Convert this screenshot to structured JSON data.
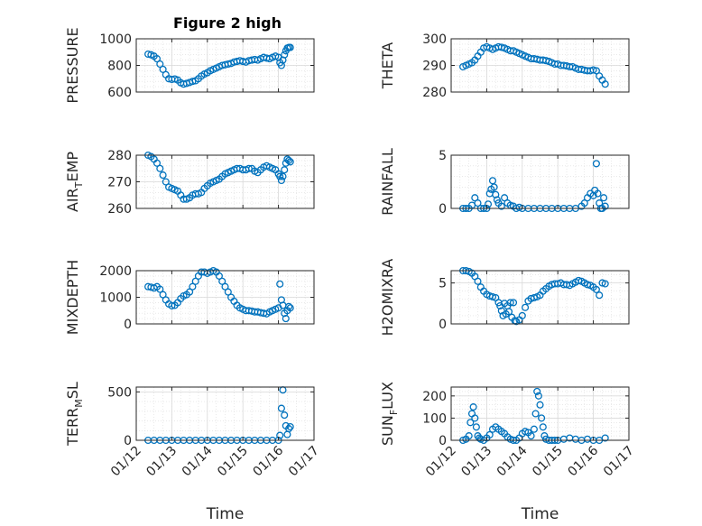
{
  "figure": {
    "title": "Figure 2 high",
    "marker_color": "#0072BD",
    "axis_color": "#262626",
    "grid_color": "#DCDCDC"
  },
  "chart_data": [
    {
      "id": "pressure",
      "type": "scatter",
      "title": "Figure 2 high",
      "ylabel": {
        "main": "PRESSURE",
        "sub": "",
        "tail": ""
      },
      "xlabel": "",
      "xlim": [
        "01/12",
        "01/17"
      ],
      "xticks": [
        "01/12",
        "01/13",
        "01/14",
        "01/15",
        "01/16",
        "01/17"
      ],
      "show_xticklabels": false,
      "ylim": [
        600,
        1000
      ],
      "yticks": [
        600,
        800,
        1000
      ],
      "grid": true,
      "x": [
        "01/12 08:00",
        "01/12 10:00",
        "01/12 12:00",
        "01/12 14:00",
        "01/12 16:00",
        "01/12 18:00",
        "01/12 20:00",
        "01/12 22:00",
        "01/13 00:00",
        "01/13 02:00",
        "01/13 04:00",
        "01/13 06:00",
        "01/13 08:00",
        "01/13 10:00",
        "01/13 12:00",
        "01/13 14:00",
        "01/13 16:00",
        "01/13 18:00",
        "01/13 20:00",
        "01/13 22:00",
        "01/14 00:00",
        "01/14 02:00",
        "01/14 04:00",
        "01/14 06:00",
        "01/14 08:00",
        "01/14 10:00",
        "01/14 12:00",
        "01/14 14:00",
        "01/14 16:00",
        "01/14 18:00",
        "01/14 20:00",
        "01/14 22:00",
        "01/15 00:00",
        "01/15 02:00",
        "01/15 04:00",
        "01/15 06:00",
        "01/15 08:00",
        "01/15 10:00",
        "01/15 12:00",
        "01/15 14:00",
        "01/15 16:00",
        "01/15 18:00",
        "01/15 20:00",
        "01/15 22:00",
        "01/16 00:00",
        "01/16 01:00",
        "01/16 02:00",
        "01/16 03:00",
        "01/16 04:00",
        "01/16 05:00",
        "01/16 06:00",
        "01/16 07:00",
        "01/16 08:00"
      ],
      "y": [
        885,
        880,
        870,
        850,
        810,
        770,
        730,
        700,
        695,
        698,
        690,
        670,
        660,
        665,
        672,
        680,
        685,
        700,
        720,
        735,
        745,
        760,
        770,
        780,
        790,
        800,
        805,
        810,
        815,
        825,
        830,
        835,
        830,
        825,
        835,
        840,
        845,
        840,
        850,
        860,
        855,
        850,
        860,
        870,
        860,
        820,
        800,
        840,
        880,
        910,
        930,
        935,
        935
      ]
    },
    {
      "id": "theta",
      "type": "scatter",
      "ylabel": {
        "main": "THETA",
        "sub": "",
        "tail": ""
      },
      "xlabel": "",
      "xlim": [
        "01/12",
        "01/17"
      ],
      "xticks": [
        "01/12",
        "01/13",
        "01/14",
        "01/15",
        "01/16",
        "01/17"
      ],
      "show_xticklabels": false,
      "ylim": [
        280,
        300
      ],
      "yticks": [
        280,
        290,
        300
      ],
      "grid": true,
      "x": [
        "01/12 08:00",
        "01/12 10:00",
        "01/12 12:00",
        "01/12 14:00",
        "01/12 16:00",
        "01/12 18:00",
        "01/12 20:00",
        "01/12 22:00",
        "01/13 00:00",
        "01/13 02:00",
        "01/13 04:00",
        "01/13 06:00",
        "01/13 08:00",
        "01/13 10:00",
        "01/13 12:00",
        "01/13 14:00",
        "01/13 16:00",
        "01/13 18:00",
        "01/13 20:00",
        "01/13 22:00",
        "01/14 00:00",
        "01/14 02:00",
        "01/14 04:00",
        "01/14 06:00",
        "01/14 08:00",
        "01/14 10:00",
        "01/14 12:00",
        "01/14 14:00",
        "01/14 16:00",
        "01/14 18:00",
        "01/14 20:00",
        "01/14 22:00",
        "01/15 00:00",
        "01/15 02:00",
        "01/15 04:00",
        "01/15 06:00",
        "01/15 08:00",
        "01/15 10:00",
        "01/15 12:00",
        "01/15 14:00",
        "01/15 16:00",
        "01/15 18:00",
        "01/15 20:00",
        "01/15 22:00",
        "01/16 00:00",
        "01/16 02:00",
        "01/16 04:00",
        "01/16 06:00",
        "01/16 08:00"
      ],
      "y": [
        289.5,
        290,
        290.5,
        291,
        292,
        293.5,
        295,
        296.5,
        297,
        296.5,
        296,
        296.5,
        297,
        296.8,
        296.5,
        296,
        295.5,
        295.5,
        295,
        294.5,
        294,
        293.5,
        293,
        292.5,
        292.5,
        292.3,
        292,
        292,
        291.8,
        291.5,
        291,
        290.5,
        290.5,
        290,
        290,
        289.8,
        289.5,
        289.5,
        289,
        288.5,
        288.5,
        288.2,
        288,
        288,
        288.3,
        288,
        286,
        284.5,
        283
      ]
    },
    {
      "id": "air-temp",
      "type": "scatter",
      "ylabel": {
        "main": "AIR",
        "sub": "T",
        "tail": "EMP"
      },
      "xlabel": "",
      "xlim": [
        "01/12",
        "01/17"
      ],
      "xticks": [
        "01/12",
        "01/13",
        "01/14",
        "01/15",
        "01/16",
        "01/17"
      ],
      "show_xticklabels": false,
      "ylim": [
        260,
        280
      ],
      "yticks": [
        260,
        270,
        280
      ],
      "grid": true,
      "x": [
        "01/12 08:00",
        "01/12 10:00",
        "01/12 12:00",
        "01/12 14:00",
        "01/12 16:00",
        "01/12 18:00",
        "01/12 20:00",
        "01/12 22:00",
        "01/13 00:00",
        "01/13 02:00",
        "01/13 04:00",
        "01/13 06:00",
        "01/13 08:00",
        "01/13 10:00",
        "01/13 12:00",
        "01/13 14:00",
        "01/13 16:00",
        "01/13 18:00",
        "01/13 20:00",
        "01/13 22:00",
        "01/14 00:00",
        "01/14 02:00",
        "01/14 04:00",
        "01/14 06:00",
        "01/14 08:00",
        "01/14 10:00",
        "01/14 12:00",
        "01/14 14:00",
        "01/14 16:00",
        "01/14 18:00",
        "01/14 20:00",
        "01/14 22:00",
        "01/15 00:00",
        "01/15 02:00",
        "01/15 04:00",
        "01/15 06:00",
        "01/15 08:00",
        "01/15 10:00",
        "01/15 12:00",
        "01/15 14:00",
        "01/15 16:00",
        "01/15 18:00",
        "01/15 20:00",
        "01/15 22:00",
        "01/16 00:00",
        "01/16 01:00",
        "01/16 02:00",
        "01/16 03:00",
        "01/16 04:00",
        "01/16 05:00",
        "01/16 06:00",
        "01/16 07:00",
        "01/16 08:00"
      ],
      "y": [
        280,
        279.5,
        278.5,
        277,
        275,
        272.5,
        270,
        268,
        267.5,
        267,
        266.5,
        265,
        263.5,
        263.5,
        264,
        265,
        265.5,
        265.5,
        266,
        267.5,
        268.5,
        269.5,
        270,
        270.5,
        271,
        272,
        273,
        273.5,
        274,
        274.5,
        275,
        275,
        274.5,
        274.5,
        275,
        275,
        274,
        273.5,
        274.5,
        275.5,
        276,
        275.5,
        275,
        274.5,
        273,
        272,
        270.5,
        272,
        274.5,
        277,
        278.5,
        278,
        277.5
      ]
    },
    {
      "id": "rainfall",
      "type": "scatter",
      "ylabel": {
        "main": "RAINFALL",
        "sub": "",
        "tail": ""
      },
      "xlabel": "",
      "xlim": [
        "01/12",
        "01/17"
      ],
      "xticks": [
        "01/12",
        "01/13",
        "01/14",
        "01/15",
        "01/16",
        "01/17"
      ],
      "show_xticklabels": false,
      "ylim": [
        0,
        5
      ],
      "yticks": [
        0,
        5
      ],
      "grid": true,
      "x": [
        "01/12 08:00",
        "01/12 10:00",
        "01/12 12:00",
        "01/12 14:00",
        "01/12 16:00",
        "01/12 18:00",
        "01/12 20:00",
        "01/12 22:00",
        "01/13 00:00",
        "01/13 01:00",
        "01/13 02:00",
        "01/13 03:00",
        "01/13 04:00",
        "01/13 05:00",
        "01/13 06:00",
        "01/13 07:00",
        "01/13 08:00",
        "01/13 10:00",
        "01/13 12:00",
        "01/13 14:00",
        "01/13 16:00",
        "01/13 18:00",
        "01/13 20:00",
        "01/13 22:00",
        "01/14 00:00",
        "01/14 04:00",
        "01/14 08:00",
        "01/14 12:00",
        "01/14 16:00",
        "01/14 20:00",
        "01/15 00:00",
        "01/15 04:00",
        "01/15 08:00",
        "01/15 12:00",
        "01/15 16:00",
        "01/15 18:00",
        "01/15 20:00",
        "01/15 22:00",
        "01/16 00:00",
        "01/16 01:00",
        "01/16 02:00",
        "01/16 03:00",
        "01/16 04:00",
        "01/16 05:00",
        "01/16 06:00",
        "01/16 07:00",
        "01/16 08:00"
      ],
      "y": [
        0,
        0,
        0,
        0.3,
        1,
        0.5,
        0,
        0,
        0,
        0.4,
        1.4,
        1.8,
        2.6,
        2,
        1.3,
        0.8,
        0.5,
        0.2,
        1,
        0.5,
        0.3,
        0.2,
        0,
        0.1,
        0,
        0,
        0,
        0,
        0,
        0,
        0,
        0,
        0,
        0,
        0.2,
        0.5,
        1,
        1.4,
        1.2,
        1.7,
        4.2,
        1.4,
        0.5,
        0,
        0,
        1,
        0.2
      ]
    },
    {
      "id": "mixdepth",
      "type": "scatter",
      "ylabel": {
        "main": "MIXDEPTH",
        "sub": "",
        "tail": ""
      },
      "xlabel": "",
      "xlim": [
        "01/12",
        "01/17"
      ],
      "xticks": [
        "01/12",
        "01/13",
        "01/14",
        "01/15",
        "01/16",
        "01/17"
      ],
      "show_xticklabels": false,
      "ylim": [
        0,
        2000
      ],
      "yticks": [
        0,
        1000,
        2000
      ],
      "grid": true,
      "x": [
        "01/12 08:00",
        "01/12 10:00",
        "01/12 12:00",
        "01/12 14:00",
        "01/12 16:00",
        "01/12 18:00",
        "01/12 20:00",
        "01/12 22:00",
        "01/13 00:00",
        "01/13 02:00",
        "01/13 04:00",
        "01/13 06:00",
        "01/13 08:00",
        "01/13 10:00",
        "01/13 12:00",
        "01/13 14:00",
        "01/13 16:00",
        "01/13 18:00",
        "01/13 20:00",
        "01/13 22:00",
        "01/14 00:00",
        "01/14 02:00",
        "01/14 04:00",
        "01/14 06:00",
        "01/14 08:00",
        "01/14 10:00",
        "01/14 12:00",
        "01/14 14:00",
        "01/14 16:00",
        "01/14 18:00",
        "01/14 20:00",
        "01/14 22:00",
        "01/15 00:00",
        "01/15 02:00",
        "01/15 04:00",
        "01/15 06:00",
        "01/15 08:00",
        "01/15 10:00",
        "01/15 12:00",
        "01/15 14:00",
        "01/15 16:00",
        "01/15 18:00",
        "01/15 20:00",
        "01/15 22:00",
        "01/16 00:00",
        "01/16 01:00",
        "01/16 02:00",
        "01/16 03:00",
        "01/16 04:00",
        "01/16 05:00",
        "01/16 06:00",
        "01/16 07:00",
        "01/16 08:00"
      ],
      "y": [
        1400,
        1380,
        1350,
        1400,
        1300,
        1100,
        900,
        750,
        680,
        700,
        800,
        950,
        1050,
        1100,
        1200,
        1400,
        1600,
        1800,
        1950,
        1950,
        1900,
        1950,
        2000,
        1950,
        1800,
        1600,
        1400,
        1200,
        1000,
        850,
        700,
        600,
        550,
        500,
        500,
        480,
        450,
        450,
        420,
        400,
        380,
        450,
        500,
        550,
        600,
        1500,
        900,
        700,
        400,
        200,
        500,
        650,
        600
      ]
    },
    {
      "id": "h2omixra",
      "type": "scatter",
      "ylabel": {
        "main": "H2OMIXRA",
        "sub": "",
        "tail": ""
      },
      "xlabel": "",
      "xlim": [
        "01/12",
        "01/17"
      ],
      "xticks": [
        "01/12",
        "01/13",
        "01/14",
        "01/15",
        "01/16",
        "01/17"
      ],
      "show_xticklabels": false,
      "ylim": [
        0,
        6.5
      ],
      "yticks": [
        0,
        5
      ],
      "grid": true,
      "x": [
        "01/12 08:00",
        "01/12 10:00",
        "01/12 12:00",
        "01/12 14:00",
        "01/12 16:00",
        "01/12 18:00",
        "01/12 20:00",
        "01/12 22:00",
        "01/13 00:00",
        "01/13 02:00",
        "01/13 04:00",
        "01/13 06:00",
        "01/13 08:00",
        "01/13 09:00",
        "01/13 10:00",
        "01/13 11:00",
        "01/13 12:00",
        "01/13 13:00",
        "01/13 14:00",
        "01/13 15:00",
        "01/13 16:00",
        "01/13 17:00",
        "01/13 18:00",
        "01/13 19:00",
        "01/13 20:00",
        "01/13 22:00",
        "01/14 00:00",
        "01/14 02:00",
        "01/14 04:00",
        "01/14 06:00",
        "01/14 08:00",
        "01/14 10:00",
        "01/14 12:00",
        "01/14 14:00",
        "01/14 16:00",
        "01/14 18:00",
        "01/14 20:00",
        "01/14 22:00",
        "01/15 00:00",
        "01/15 02:00",
        "01/15 04:00",
        "01/15 06:00",
        "01/15 08:00",
        "01/15 10:00",
        "01/15 12:00",
        "01/15 14:00",
        "01/15 16:00",
        "01/15 18:00",
        "01/15 20:00",
        "01/15 22:00",
        "01/16 00:00",
        "01/16 02:00",
        "01/16 04:00",
        "01/16 06:00",
        "01/16 08:00"
      ],
      "y": [
        6.5,
        6.5,
        6.4,
        6.2,
        5.8,
        5.2,
        4.5,
        4,
        3.6,
        3.4,
        3.3,
        3.2,
        2.6,
        2.2,
        1.6,
        1,
        2.5,
        1.2,
        2.2,
        1.5,
        2.6,
        0.8,
        2.6,
        0.4,
        0.3,
        0.5,
        1,
        2,
        2.8,
        3.1,
        3.2,
        3.3,
        3.5,
        4,
        4.3,
        4.6,
        4.8,
        4.9,
        4.9,
        5,
        4.8,
        4.8,
        4.7,
        4.9,
        5.1,
        5.3,
        5.2,
        5,
        4.8,
        4.7,
        4.5,
        4.2,
        3.5,
        5,
        4.9
      ]
    },
    {
      "id": "terr-msl",
      "type": "scatter",
      "ylabel": {
        "main": "TERR",
        "sub": "M",
        "tail": "SL"
      },
      "xlabel": "Time",
      "xlim": [
        "01/12",
        "01/17"
      ],
      "xticks": [
        "01/12",
        "01/13",
        "01/14",
        "01/15",
        "01/16",
        "01/17"
      ],
      "show_xticklabels": true,
      "ylim": [
        0,
        550
      ],
      "yticks": [
        0,
        500
      ],
      "grid": true,
      "x": [
        "01/12 08:00",
        "01/12 12:00",
        "01/12 16:00",
        "01/12 20:00",
        "01/13 00:00",
        "01/13 04:00",
        "01/13 08:00",
        "01/13 12:00",
        "01/13 16:00",
        "01/13 20:00",
        "01/14 00:00",
        "01/14 04:00",
        "01/14 08:00",
        "01/14 12:00",
        "01/14 16:00",
        "01/14 20:00",
        "01/15 00:00",
        "01/15 04:00",
        "01/15 08:00",
        "01/15 12:00",
        "01/15 16:00",
        "01/15 20:00",
        "01/16 00:00",
        "01/16 01:00",
        "01/16 02:00",
        "01/16 03:00",
        "01/16 04:00",
        "01/16 05:00",
        "01/16 06:00",
        "01/16 07:00",
        "01/16 08:00"
      ],
      "y": [
        0,
        0,
        0,
        0,
        0,
        0,
        0,
        0,
        0,
        0,
        0,
        0,
        0,
        0,
        0,
        0,
        0,
        0,
        0,
        0,
        0,
        0,
        0,
        50,
        330,
        520,
        260,
        150,
        60,
        120,
        140
      ]
    },
    {
      "id": "sun-flux",
      "type": "scatter",
      "ylabel": {
        "main": "SUN",
        "sub": "F",
        "tail": "LUX"
      },
      "xlabel": "Time",
      "xlim": [
        "01/12",
        "01/17"
      ],
      "xticks": [
        "01/12",
        "01/13",
        "01/14",
        "01/15",
        "01/16",
        "01/17"
      ],
      "show_xticklabels": true,
      "ylim": [
        0,
        240
      ],
      "yticks": [
        0,
        100,
        200
      ],
      "grid": true,
      "x": [
        "01/12 08:00",
        "01/12 10:00",
        "01/12 12:00",
        "01/12 13:00",
        "01/12 14:00",
        "01/12 15:00",
        "01/12 16:00",
        "01/12 17:00",
        "01/12 18:00",
        "01/12 19:00",
        "01/12 20:00",
        "01/12 22:00",
        "01/13 00:00",
        "01/13 02:00",
        "01/13 04:00",
        "01/13 06:00",
        "01/13 08:00",
        "01/13 10:00",
        "01/13 12:00",
        "01/13 14:00",
        "01/13 16:00",
        "01/13 18:00",
        "01/13 20:00",
        "01/13 22:00",
        "01/14 00:00",
        "01/14 02:00",
        "01/14 04:00",
        "01/14 06:00",
        "01/14 08:00",
        "01/14 09:00",
        "01/14 10:00",
        "01/14 11:00",
        "01/14 12:00",
        "01/14 13:00",
        "01/14 14:00",
        "01/14 15:00",
        "01/14 16:00",
        "01/14 18:00",
        "01/14 20:00",
        "01/14 22:00",
        "01/15 00:00",
        "01/15 04:00",
        "01/15 08:00",
        "01/15 12:00",
        "01/15 16:00",
        "01/15 20:00",
        "01/16 00:00",
        "01/16 04:00",
        "01/16 08:00"
      ],
      "y": [
        0,
        5,
        20,
        80,
        120,
        150,
        100,
        60,
        20,
        10,
        5,
        0,
        10,
        25,
        50,
        60,
        50,
        40,
        30,
        15,
        5,
        0,
        0,
        10,
        30,
        40,
        35,
        20,
        50,
        120,
        220,
        200,
        160,
        100,
        60,
        20,
        5,
        0,
        0,
        0,
        0,
        5,
        10,
        5,
        0,
        5,
        0,
        0,
        10
      ]
    }
  ]
}
